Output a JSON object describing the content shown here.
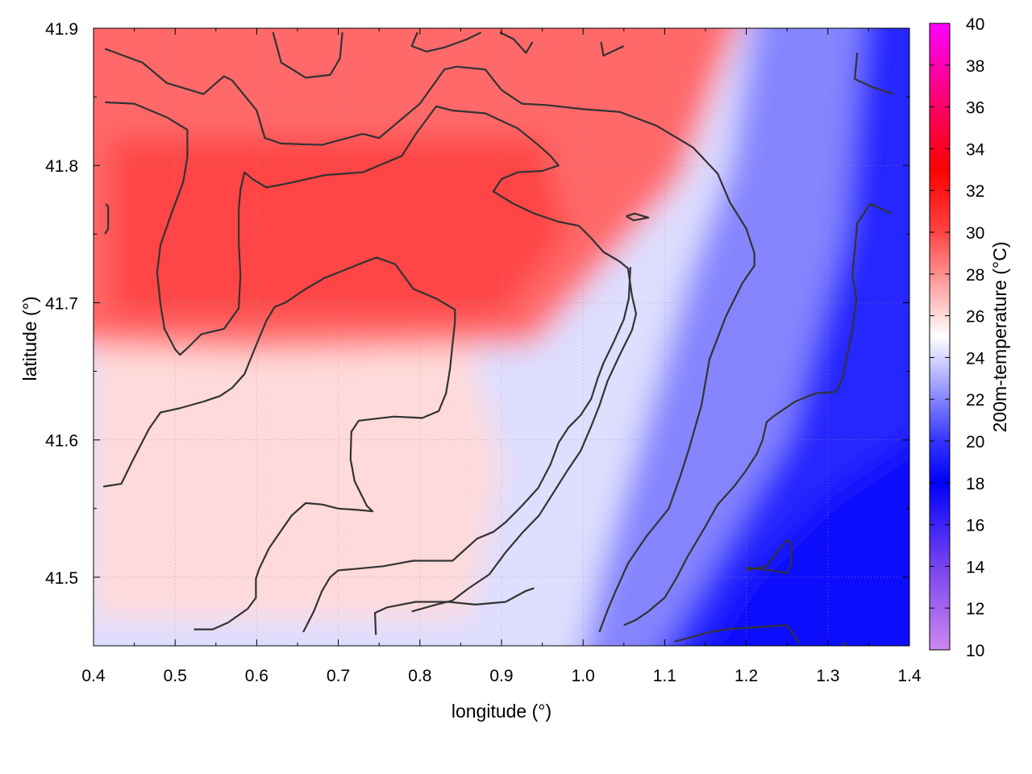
{
  "chart_data": {
    "type": "heatmap",
    "xlabel": "longitude (°)",
    "ylabel": "latitude (°)",
    "colorbar_label": "200m-temperature (°C)",
    "xlim": [
      0.4,
      1.4
    ],
    "ylim": [
      41.45,
      41.9
    ],
    "x_ticks": [
      0.4,
      0.5,
      0.6,
      0.7,
      0.8,
      0.9,
      1.0,
      1.1,
      1.2,
      1.3,
      1.4
    ],
    "x_tick_labels": [
      "0.4",
      "0.5",
      "0.6",
      "0.7",
      "0.8",
      "0.9",
      "1.0",
      "1.1",
      "1.2",
      "1.3",
      "1.4"
    ],
    "y_ticks": [
      41.5,
      41.6,
      41.7,
      41.8,
      41.9
    ],
    "y_tick_labels": [
      "41.5",
      "41.6",
      "41.7",
      "41.8",
      "41.9"
    ],
    "colorbar_range": [
      10,
      40
    ],
    "colorbar_ticks": [
      10,
      12,
      14,
      16,
      18,
      20,
      22,
      24,
      26,
      28,
      30,
      32,
      34,
      36,
      38,
      40
    ],
    "colorbar_tick_labels": [
      "10",
      "12",
      "14",
      "16",
      "18",
      "20",
      "22",
      "24",
      "26",
      "28",
      "30",
      "32",
      "34",
      "36",
      "38",
      "40"
    ],
    "colormap": [
      {
        "value": 10,
        "color": "#cc88ee"
      },
      {
        "value": 14,
        "color": "#7744ee"
      },
      {
        "value": 18,
        "color": "#0000ff"
      },
      {
        "value": 20,
        "color": "#3333ff"
      },
      {
        "value": 25,
        "color": "#ffffff"
      },
      {
        "value": 30,
        "color": "#ff4444"
      },
      {
        "value": 33,
        "color": "#ff0000"
      },
      {
        "value": 36,
        "color": "#ff0066"
      },
      {
        "value": 40,
        "color": "#ff00ff"
      }
    ],
    "grid": true,
    "contour_color": "#333333",
    "field_description_values": {
      "warm_core_max": 30,
      "cool_corner_min": 17.5
    },
    "contours": [
      [
        [
          0.414,
          41.885
        ],
        [
          0.46,
          41.875
        ],
        [
          0.49,
          41.86
        ],
        [
          0.535,
          41.852
        ],
        [
          0.55,
          41.86
        ],
        [
          0.56,
          41.865
        ],
        [
          0.57,
          41.862
        ],
        [
          0.6,
          41.84
        ],
        [
          0.61,
          41.82
        ],
        [
          0.63,
          41.816
        ],
        [
          0.68,
          41.815
        ],
        [
          0.73,
          41.823
        ],
        [
          0.75,
          41.82
        ],
        [
          0.78,
          41.835
        ],
        [
          0.8,
          41.845
        ],
        [
          0.83,
          41.87
        ],
        [
          0.845,
          41.872
        ],
        [
          0.88,
          41.87
        ],
        [
          0.9,
          41.855
        ],
        [
          0.925,
          41.845
        ],
        [
          0.955,
          41.844
        ],
        [
          1.0,
          41.841
        ],
        [
          1.045,
          41.839
        ],
        [
          1.09,
          41.829
        ],
        [
          1.135,
          41.813
        ],
        [
          1.165,
          41.794
        ],
        [
          1.18,
          41.773
        ],
        [
          1.2,
          41.754
        ],
        [
          1.21,
          41.736
        ],
        [
          1.21,
          41.727
        ],
        [
          1.195,
          41.714
        ],
        [
          1.175,
          41.69
        ],
        [
          1.155,
          41.659
        ],
        [
          1.145,
          41.625
        ],
        [
          1.13,
          41.594
        ],
        [
          1.12,
          41.575
        ],
        [
          1.105,
          41.55
        ],
        [
          1.078,
          41.53
        ],
        [
          1.055,
          41.51
        ],
        [
          1.04,
          41.49
        ],
        [
          1.03,
          41.476
        ],
        [
          1.02,
          41.46
        ]
      ],
      [
        [
          0.414,
          41.846
        ],
        [
          0.45,
          41.845
        ],
        [
          0.49,
          41.835
        ],
        [
          0.515,
          41.826
        ],
        [
          0.515,
          41.806
        ],
        [
          0.51,
          41.788
        ],
        [
          0.495,
          41.764
        ],
        [
          0.482,
          41.742
        ],
        [
          0.478,
          41.722
        ],
        [
          0.482,
          41.699
        ],
        [
          0.487,
          41.681
        ],
        [
          0.5,
          41.666
        ],
        [
          0.506,
          41.662
        ],
        [
          0.517,
          41.668
        ],
        [
          0.532,
          41.677
        ],
        [
          0.56,
          41.681
        ],
        [
          0.578,
          41.696
        ],
        [
          0.58,
          41.72
        ],
        [
          0.578,
          41.744
        ],
        [
          0.578,
          41.768
        ],
        [
          0.58,
          41.782
        ],
        [
          0.585,
          41.795
        ],
        [
          0.595,
          41.79
        ],
        [
          0.612,
          41.784
        ],
        [
          0.638,
          41.787
        ],
        [
          0.684,
          41.793
        ],
        [
          0.73,
          41.795
        ],
        [
          0.778,
          41.807
        ],
        [
          0.795,
          41.823
        ],
        [
          0.82,
          41.843
        ],
        [
          0.84,
          41.84
        ],
        [
          0.88,
          41.838
        ],
        [
          0.92,
          41.827
        ],
        [
          0.945,
          41.815
        ],
        [
          0.96,
          41.807
        ],
        [
          0.97,
          41.8
        ],
        [
          0.95,
          41.796
        ],
        [
          0.92,
          41.795
        ],
        [
          0.9,
          41.79
        ],
        [
          0.89,
          41.781
        ],
        [
          0.915,
          41.772
        ],
        [
          0.94,
          41.765
        ],
        [
          0.97,
          41.759
        ],
        [
          0.995,
          41.756
        ],
        [
          1.01,
          41.747
        ],
        [
          1.025,
          41.737
        ],
        [
          1.045,
          41.73
        ],
        [
          1.055,
          41.725
        ],
        [
          1.06,
          41.705
        ],
        [
          1.065,
          41.692
        ],
        [
          1.06,
          41.68
        ],
        [
          1.045,
          41.662
        ],
        [
          1.03,
          41.643
        ],
        [
          1.02,
          41.625
        ],
        [
          1.01,
          41.61
        ],
        [
          0.997,
          41.592
        ],
        [
          0.98,
          41.577
        ],
        [
          0.963,
          41.561
        ],
        [
          0.946,
          41.545
        ],
        [
          0.925,
          41.532
        ],
        [
          0.905,
          41.518
        ],
        [
          0.885,
          41.502
        ],
        [
          0.86,
          41.492
        ],
        [
          0.84,
          41.483
        ],
        [
          0.82,
          41.48
        ],
        [
          0.79,
          41.475
        ]
      ],
      [
        [
          0.412,
          41.566
        ],
        [
          0.434,
          41.568
        ],
        [
          0.448,
          41.585
        ],
        [
          0.468,
          41.608
        ],
        [
          0.482,
          41.62
        ],
        [
          0.505,
          41.623
        ],
        [
          0.535,
          41.628
        ],
        [
          0.555,
          41.632
        ],
        [
          0.57,
          41.638
        ],
        [
          0.585,
          41.648
        ],
        [
          0.6,
          41.67
        ],
        [
          0.612,
          41.687
        ],
        [
          0.622,
          41.697
        ],
        [
          0.635,
          41.7
        ],
        [
          0.66,
          41.71
        ],
        [
          0.683,
          41.718
        ],
        [
          0.7,
          41.722
        ],
        [
          0.725,
          41.728
        ],
        [
          0.747,
          41.733
        ],
        [
          0.77,
          41.728
        ],
        [
          0.792,
          41.71
        ],
        [
          0.82,
          41.703
        ],
        [
          0.843,
          41.695
        ],
        [
          0.843,
          41.686
        ],
        [
          0.84,
          41.67
        ],
        [
          0.837,
          41.652
        ],
        [
          0.832,
          41.634
        ],
        [
          0.823,
          41.621
        ],
        [
          0.803,
          41.616
        ],
        [
          0.768,
          41.617
        ],
        [
          0.725,
          41.614
        ],
        [
          0.716,
          41.606
        ],
        [
          0.715,
          41.586
        ],
        [
          0.72,
          41.57
        ],
        [
          0.735,
          41.552
        ],
        [
          0.742,
          41.548
        ],
        [
          0.725,
          41.549
        ],
        [
          0.7,
          41.55
        ],
        [
          0.68,
          41.553
        ],
        [
          0.66,
          41.554
        ],
        [
          0.643,
          41.545
        ],
        [
          0.63,
          41.534
        ],
        [
          0.615,
          41.521
        ],
        [
          0.603,
          41.506
        ],
        [
          0.599,
          41.499
        ],
        [
          0.599,
          41.485
        ],
        [
          0.589,
          41.477
        ],
        [
          0.565,
          41.467
        ],
        [
          0.546,
          41.462
        ],
        [
          0.523,
          41.462
        ]
      ],
      [
        [
          0.62,
          41.897
        ],
        [
          0.63,
          41.875
        ],
        [
          0.66,
          41.864
        ],
        [
          0.69,
          41.866
        ],
        [
          0.702,
          41.878
        ],
        [
          0.705,
          41.897
        ]
      ],
      [
        [
          0.797,
          41.897
        ],
        [
          0.79,
          41.887
        ],
        [
          0.808,
          41.883
        ],
        [
          0.83,
          41.886
        ],
        [
          0.858,
          41.892
        ],
        [
          0.875,
          41.897
        ]
      ],
      [
        [
          0.898,
          41.897
        ],
        [
          0.915,
          41.892
        ],
        [
          0.93,
          41.882
        ],
        [
          0.938,
          41.89
        ]
      ],
      [
        [
          1.022,
          41.89
        ],
        [
          1.025,
          41.88
        ],
        [
          1.05,
          41.887
        ]
      ],
      [
        [
          1.336,
          41.882
        ],
        [
          1.333,
          41.863
        ],
        [
          1.355,
          41.857
        ],
        [
          1.38,
          41.852
        ]
      ],
      [
        [
          0.415,
          41.772
        ],
        [
          0.418,
          41.77
        ],
        [
          0.418,
          41.754
        ],
        [
          0.414,
          41.75
        ]
      ],
      [
        [
          1.053,
          41.763
        ],
        [
          1.063,
          41.765
        ],
        [
          1.08,
          41.762
        ],
        [
          1.062,
          41.76
        ],
        [
          1.053,
          41.763
        ]
      ],
      [
        [
          1.378,
          41.765
        ],
        [
          1.352,
          41.772
        ],
        [
          1.336,
          41.758
        ],
        [
          1.333,
          41.738
        ],
        [
          1.33,
          41.72
        ],
        [
          1.335,
          41.703
        ],
        [
          1.33,
          41.68
        ],
        [
          1.323,
          41.66
        ],
        [
          1.318,
          41.645
        ],
        [
          1.31,
          41.635
        ],
        [
          1.285,
          41.634
        ],
        [
          1.26,
          41.628
        ],
        [
          1.233,
          41.617
        ],
        [
          1.225,
          41.613
        ],
        [
          1.22,
          41.6
        ],
        [
          1.213,
          41.59
        ],
        [
          1.2,
          41.578
        ],
        [
          1.185,
          41.566
        ],
        [
          1.165,
          41.553
        ],
        [
          1.148,
          41.535
        ],
        [
          1.128,
          41.515
        ],
        [
          1.115,
          41.5
        ],
        [
          1.1,
          41.485
        ],
        [
          1.08,
          41.475
        ],
        [
          1.065,
          41.469
        ],
        [
          1.05,
          41.465
        ]
      ],
      [
        [
          1.2,
          41.507
        ],
        [
          1.23,
          41.505
        ],
        [
          1.25,
          41.503
        ],
        [
          1.255,
          41.51
        ],
        [
          1.255,
          41.525
        ],
        [
          1.25,
          41.527
        ],
        [
          1.24,
          41.52
        ],
        [
          1.225,
          41.508
        ],
        [
          1.2,
          41.505
        ]
      ],
      [
        [
          1.112,
          41.453
        ],
        [
          1.155,
          41.46
        ],
        [
          1.175,
          41.462
        ],
        [
          1.222,
          41.464
        ],
        [
          1.25,
          41.465
        ],
        [
          1.265,
          41.452
        ]
      ],
      [
        [
          0.657,
          41.46
        ],
        [
          0.67,
          41.475
        ],
        [
          0.68,
          41.49
        ],
        [
          0.69,
          41.5
        ],
        [
          0.7,
          41.505
        ],
        [
          0.72,
          41.506
        ],
        [
          0.755,
          41.508
        ],
        [
          0.792,
          41.512
        ],
        [
          0.81,
          41.512
        ],
        [
          0.84,
          41.512
        ],
        [
          0.87,
          41.528
        ],
        [
          0.89,
          41.533
        ],
        [
          0.905,
          41.54
        ],
        [
          0.925,
          41.552
        ],
        [
          0.945,
          41.565
        ],
        [
          0.96,
          41.582
        ],
        [
          0.97,
          41.598
        ],
        [
          0.982,
          41.609
        ],
        [
          0.997,
          41.618
        ],
        [
          1.01,
          41.63
        ],
        [
          1.018,
          41.645
        ],
        [
          1.025,
          41.656
        ],
        [
          1.038,
          41.672
        ],
        [
          1.05,
          41.688
        ],
        [
          1.056,
          41.703
        ],
        [
          1.058,
          41.726
        ]
      ],
      [
        [
          0.746,
          41.458
        ],
        [
          0.745,
          41.474
        ],
        [
          0.76,
          41.478
        ],
        [
          0.795,
          41.482
        ],
        [
          0.835,
          41.482
        ],
        [
          0.868,
          41.48
        ],
        [
          0.905,
          41.482
        ],
        [
          0.93,
          41.49
        ],
        [
          0.94,
          41.492
        ]
      ],
      [
        [
          1.318,
          41.451
        ],
        [
          1.323,
          41.452
        ]
      ]
    ]
  }
}
